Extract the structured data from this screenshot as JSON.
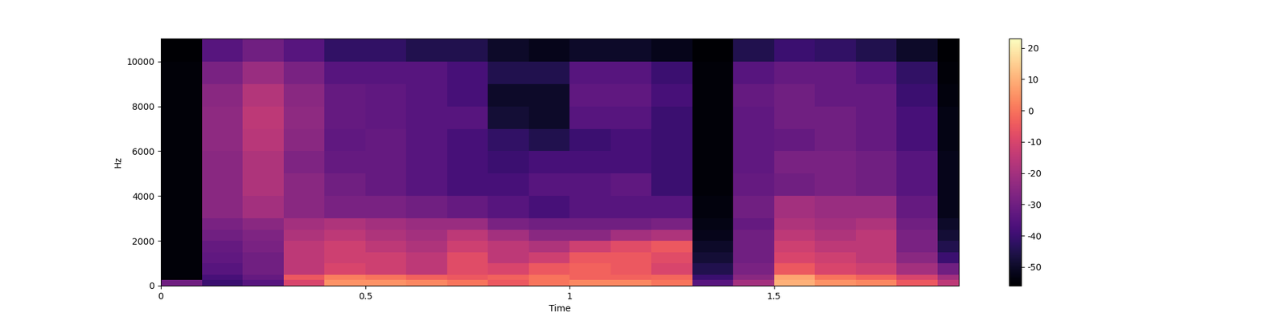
{
  "chart_data": {
    "type": "heatmap",
    "x_label": "Time",
    "y_label": "Hz",
    "xlim": [
      0,
      1.952
    ],
    "xticks": [
      0,
      0.5,
      1,
      1.5
    ],
    "ylim": [
      0,
      11025
    ],
    "yticks": [
      0,
      2000,
      4000,
      6000,
      8000,
      10000
    ],
    "color": "magma",
    "x_edges": [
      0,
      0.1,
      0.2,
      0.3,
      0.4,
      0.5,
      0.6,
      0.7,
      0.8,
      0.9,
      1.0,
      1.1,
      1.2,
      1.3,
      1.4,
      1.5,
      1.6,
      1.7,
      1.8,
      1.9,
      1.952
    ],
    "y_edges": [
      0,
      250,
      500,
      1000,
      1500,
      2000,
      2500,
      3000,
      4000,
      5000,
      6000,
      7000,
      8000,
      9000,
      10000,
      11025
    ],
    "cells": [
      [
        -30,
        -40,
        -35,
        -10,
        5,
        5,
        3,
        0,
        -5,
        0,
        3,
        3,
        0,
        -35,
        -20,
        10,
        5,
        3,
        -5,
        -15
      ],
      [
        -55,
        -38,
        -32,
        -5,
        2,
        0,
        -3,
        -5,
        -3,
        0,
        -3,
        -3,
        -2,
        -40,
        -25,
        8,
        0,
        -3,
        -10,
        -20
      ],
      [
        -55,
        -35,
        -30,
        -15,
        -10,
        -12,
        -15,
        -8,
        -10,
        -5,
        -3,
        -5,
        -10,
        -45,
        -28,
        -5,
        -10,
        -12,
        -20,
        -30
      ],
      [
        -55,
        -33,
        -30,
        -15,
        -12,
        -12,
        -15,
        -8,
        -15,
        -12,
        -5,
        -5,
        -8,
        -48,
        -30,
        -10,
        -12,
        -15,
        -25,
        -40
      ],
      [
        -55,
        -32,
        -28,
        -15,
        -12,
        -15,
        -18,
        -12,
        -15,
        -18,
        -12,
        -8,
        -5,
        -50,
        -30,
        -12,
        -15,
        -15,
        -28,
        -45
      ],
      [
        -55,
        -30,
        -27,
        -18,
        -15,
        -18,
        -20,
        -15,
        -20,
        -25,
        -25,
        -20,
        -18,
        -52,
        -30,
        -15,
        -18,
        -15,
        -28,
        -48
      ],
      [
        -55,
        -28,
        -25,
        -20,
        -18,
        -20,
        -22,
        -22,
        -28,
        -30,
        -30,
        -30,
        -28,
        -53,
        -32,
        -18,
        -20,
        -18,
        -30,
        -50
      ],
      [
        -55,
        -25,
        -20,
        -25,
        -28,
        -28,
        -30,
        -32,
        -35,
        -38,
        -35,
        -35,
        -35,
        -54,
        -30,
        -20,
        -22,
        -22,
        -32,
        -52
      ],
      [
        -55,
        -25,
        -18,
        -25,
        -30,
        -32,
        -35,
        -38,
        -38,
        -35,
        -35,
        -33,
        -40,
        -55,
        -32,
        -30,
        -28,
        -30,
        -35,
        -52
      ],
      [
        -55,
        -25,
        -18,
        -27,
        -32,
        -32,
        -35,
        -38,
        -40,
        -38,
        -38,
        -38,
        -40,
        -55,
        -33,
        -28,
        -28,
        -30,
        -35,
        -52
      ],
      [
        -55,
        -24,
        -16,
        -25,
        -33,
        -32,
        -35,
        -38,
        -42,
        -45,
        -40,
        -38,
        -40,
        -55,
        -33,
        -32,
        -30,
        -32,
        -38,
        -53
      ],
      [
        -55,
        -24,
        -15,
        -24,
        -32,
        -33,
        -35,
        -35,
        -48,
        -50,
        -35,
        -35,
        -40,
        -55,
        -33,
        -30,
        -30,
        -32,
        -38,
        -53
      ],
      [
        -55,
        -25,
        -17,
        -25,
        -32,
        -33,
        -35,
        -38,
        -50,
        -50,
        -33,
        -33,
        -38,
        -55,
        -32,
        -30,
        -32,
        -32,
        -40,
        -54
      ],
      [
        -55,
        -28,
        -22,
        -28,
        -35,
        -35,
        -35,
        -38,
        -45,
        -45,
        -35,
        -35,
        -40,
        -55,
        -35,
        -32,
        -32,
        -35,
        -42,
        -55
      ],
      [
        -56,
        -35,
        -30,
        -35,
        -42,
        -42,
        -45,
        -45,
        -50,
        -52,
        -50,
        -50,
        -52,
        -56,
        -45,
        -40,
        -42,
        -45,
        -50,
        -56
      ]
    ],
    "colorbar": {
      "lim": [
        -56,
        23
      ],
      "ticks": [
        -50,
        -40,
        -30,
        -20,
        -10,
        0,
        10,
        20
      ]
    }
  }
}
